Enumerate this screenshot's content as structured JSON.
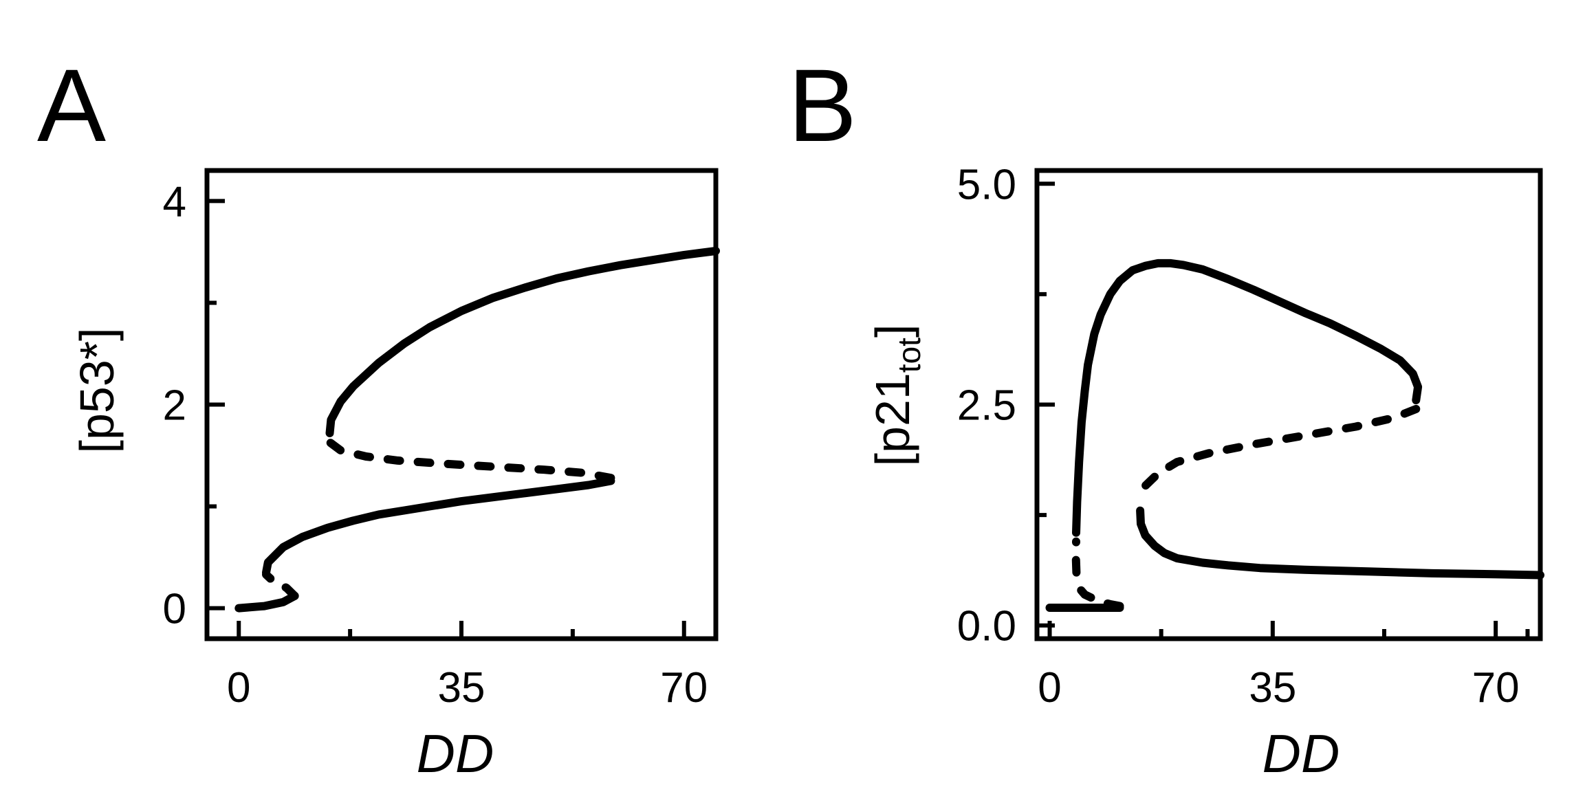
{
  "chart_data": [
    {
      "type": "line",
      "panel_label": "A",
      "title": "",
      "xlabel": "DD",
      "ylabel": "[p53*]",
      "xlim": [
        -5,
        75
      ],
      "ylim": [
        -0.3,
        4.3
      ],
      "xticks": [
        0,
        35,
        70
      ],
      "xticks_minor": [
        17.5,
        52.5
      ],
      "yticks": [
        0,
        2,
        4
      ],
      "yticks_minor": [
        1,
        3
      ],
      "grid": false,
      "legend": "none",
      "series": [
        {
          "style": "solid",
          "x": [
            0,
            4,
            7,
            8.8
          ],
          "y": [
            0,
            0.02,
            0.06,
            0.12
          ]
        },
        {
          "style": "dashed",
          "x": [
            8.8,
            7.5,
            5.5,
            4.3
          ],
          "y": [
            0.12,
            0.2,
            0.26,
            0.33
          ]
        },
        {
          "style": "solid",
          "x": [
            4.3,
            4.6,
            7,
            10,
            14,
            18,
            22,
            26,
            30,
            35,
            40,
            45,
            50,
            55,
            58.5
          ],
          "y": [
            0.35,
            0.45,
            0.6,
            0.7,
            0.79,
            0.86,
            0.92,
            0.96,
            1.0,
            1.05,
            1.09,
            1.13,
            1.17,
            1.21,
            1.25
          ]
        },
        {
          "style": "dashed",
          "x": [
            58.5,
            54,
            48,
            40,
            32,
            25,
            20,
            16,
            14.3
          ],
          "y": [
            1.28,
            1.33,
            1.36,
            1.39,
            1.42,
            1.45,
            1.49,
            1.55,
            1.63
          ]
        },
        {
          "style": "solid",
          "x": [
            14.3,
            14.5,
            16,
            18,
            22,
            26,
            30,
            35,
            40,
            45,
            50,
            55,
            60,
            65,
            70,
            75
          ],
          "y": [
            1.72,
            1.85,
            2.03,
            2.18,
            2.41,
            2.6,
            2.76,
            2.92,
            3.05,
            3.15,
            3.24,
            3.31,
            3.37,
            3.42,
            3.47,
            3.51
          ]
        }
      ]
    },
    {
      "type": "line",
      "panel_label": "B",
      "title": "",
      "xlabel": "DD",
      "ylabel_main": "[p21",
      "ylabel_sub": "tot",
      "ylabel_close": "]",
      "xlim": [
        -2,
        77
      ],
      "ylim": [
        -0.15,
        5.15
      ],
      "xticks": [
        0,
        35,
        70
      ],
      "xticks_minor": [
        17.5,
        52.5,
        75
      ],
      "yticks": [
        0.0,
        2.5,
        5.0
      ],
      "ytick_labels": [
        "0.0",
        "2.5",
        "5.0"
      ],
      "yticks_minor": [
        1.25,
        3.75
      ],
      "grid": false,
      "legend": "none",
      "series": [
        {
          "style": "solid",
          "x": [
            0,
            3.5,
            7,
            11
          ],
          "y": [
            0.2,
            0.2,
            0.2,
            0.2
          ]
        },
        {
          "style": "dashed",
          "x": [
            11,
            9.5,
            7.5,
            5.5,
            4.3,
            4.2
          ],
          "y": [
            0.22,
            0.24,
            0.28,
            0.35,
            0.45,
            0.55
          ]
        },
        {
          "style": "dashed",
          "x": [
            4.2,
            4.1,
            4.15
          ],
          "y": [
            0.6,
            0.8,
            0.95
          ]
        },
        {
          "style": "solid",
          "x": [
            4.15,
            4.3,
            4.6,
            5,
            5.5,
            6,
            7,
            8,
            9.5,
            11,
            13,
            15,
            17,
            19,
            21,
            24,
            28,
            32,
            36,
            40,
            44,
            48,
            52,
            55,
            57,
            57.8,
            57.5
          ],
          "y": [
            1.05,
            1.4,
            1.85,
            2.3,
            2.65,
            2.95,
            3.3,
            3.52,
            3.75,
            3.9,
            4.02,
            4.07,
            4.1,
            4.1,
            4.08,
            4.03,
            3.92,
            3.8,
            3.67,
            3.54,
            3.42,
            3.28,
            3.13,
            3.0,
            2.85,
            2.7,
            2.55
          ]
        },
        {
          "style": "dashed",
          "x": [
            57.5,
            54,
            48,
            40,
            32,
            25,
            20,
            17,
            15,
            14.2
          ],
          "y": [
            2.45,
            2.35,
            2.25,
            2.15,
            2.05,
            1.95,
            1.85,
            1.72,
            1.58,
            1.42
          ]
        },
        {
          "style": "solid",
          "x": [
            14.2,
            14.3,
            15,
            16.5,
            18,
            20,
            24,
            28,
            33,
            40,
            50,
            60,
            70,
            77
          ],
          "y": [
            1.3,
            1.15,
            1.02,
            0.9,
            0.82,
            0.76,
            0.71,
            0.68,
            0.65,
            0.63,
            0.61,
            0.59,
            0.58,
            0.57
          ]
        }
      ]
    }
  ]
}
